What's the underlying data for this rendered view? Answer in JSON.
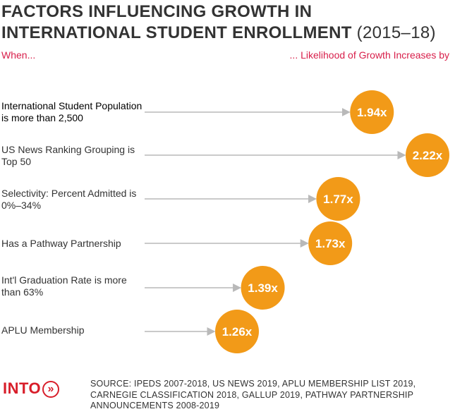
{
  "header": {
    "title_bold": "FACTORS INFLUENCING GROWTH IN INTERNATIONAL STUDENT ENROLLMENT",
    "title_years": "(2015–18)",
    "left_caption": "When...",
    "right_caption": "... Likelihood of Growth Increases by"
  },
  "chart_data": {
    "type": "bar",
    "categories": [
      "International Student Population is more than 2,500",
      "US News Ranking Grouping is Top 50",
      "Selectivity: Percent Admitted is 0%–34%",
      "Has a Pathway Partnership",
      "Int'l Graduation Rate is more than 63%",
      "APLU Membership"
    ],
    "values": [
      1.94,
      2.22,
      1.77,
      1.73,
      1.39,
      1.26
    ],
    "value_labels": [
      "1.94x",
      "2.22x",
      "1.77x",
      "1.73x",
      "1.39x",
      "1.26x"
    ],
    "unit": "x",
    "colors": {
      "bubble": "#f29a18",
      "bubble_text": "#ffffff",
      "arrow": "#b9b9b9"
    },
    "grid": false,
    "legend": "none"
  },
  "footer": {
    "logo_text": "INTO",
    "source": "SOURCE: IPEDS 2007-2018, US NEWS 2019, APLU MEMBERSHIP LIST 2019, CARNEGIE CLASSIFICATION 2018, GALLUP 2019, PATHWAY PARTNERSHIP ANNOUNCEMENTS 2008-2019"
  }
}
